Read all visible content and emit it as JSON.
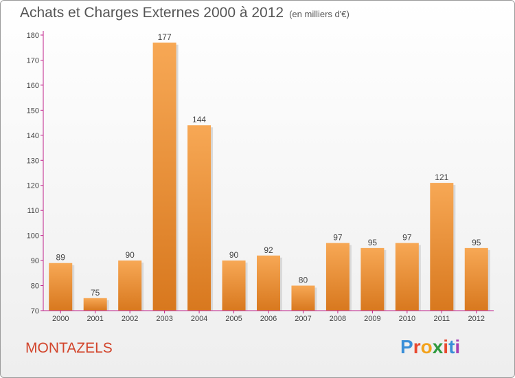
{
  "title": "Achats et Charges Externes 2000 à 2012",
  "subtitle": "(en milliers d'€)",
  "commune": "MONTAZELS",
  "logo": {
    "letters": [
      "P",
      "r",
      "o",
      "x",
      "i",
      "t",
      "i"
    ],
    "colors": [
      "#3a8fd8",
      "#e8492f",
      "#f3a21b",
      "#2f9a3f",
      "#e8492f",
      "#3a8fd8",
      "#a63fb3"
    ]
  },
  "colors": {
    "bar_light": "#f7a855",
    "bar_dark": "#d8781e",
    "axis": "#c0208a",
    "title": "#555555",
    "commune": "#d2452c"
  },
  "chart_data": {
    "type": "bar",
    "categories": [
      "2000",
      "2001",
      "2002",
      "2003",
      "2004",
      "2005",
      "2006",
      "2007",
      "2008",
      "2009",
      "2010",
      "2011",
      "2012"
    ],
    "values": [
      89,
      75,
      90,
      177,
      144,
      90,
      92,
      80,
      97,
      95,
      97,
      121,
      95
    ],
    "ylim": [
      70,
      180
    ],
    "yticks": [
      70,
      80,
      90,
      100,
      110,
      120,
      130,
      140,
      150,
      160,
      170,
      180
    ],
    "grid": false,
    "legend": "none"
  }
}
